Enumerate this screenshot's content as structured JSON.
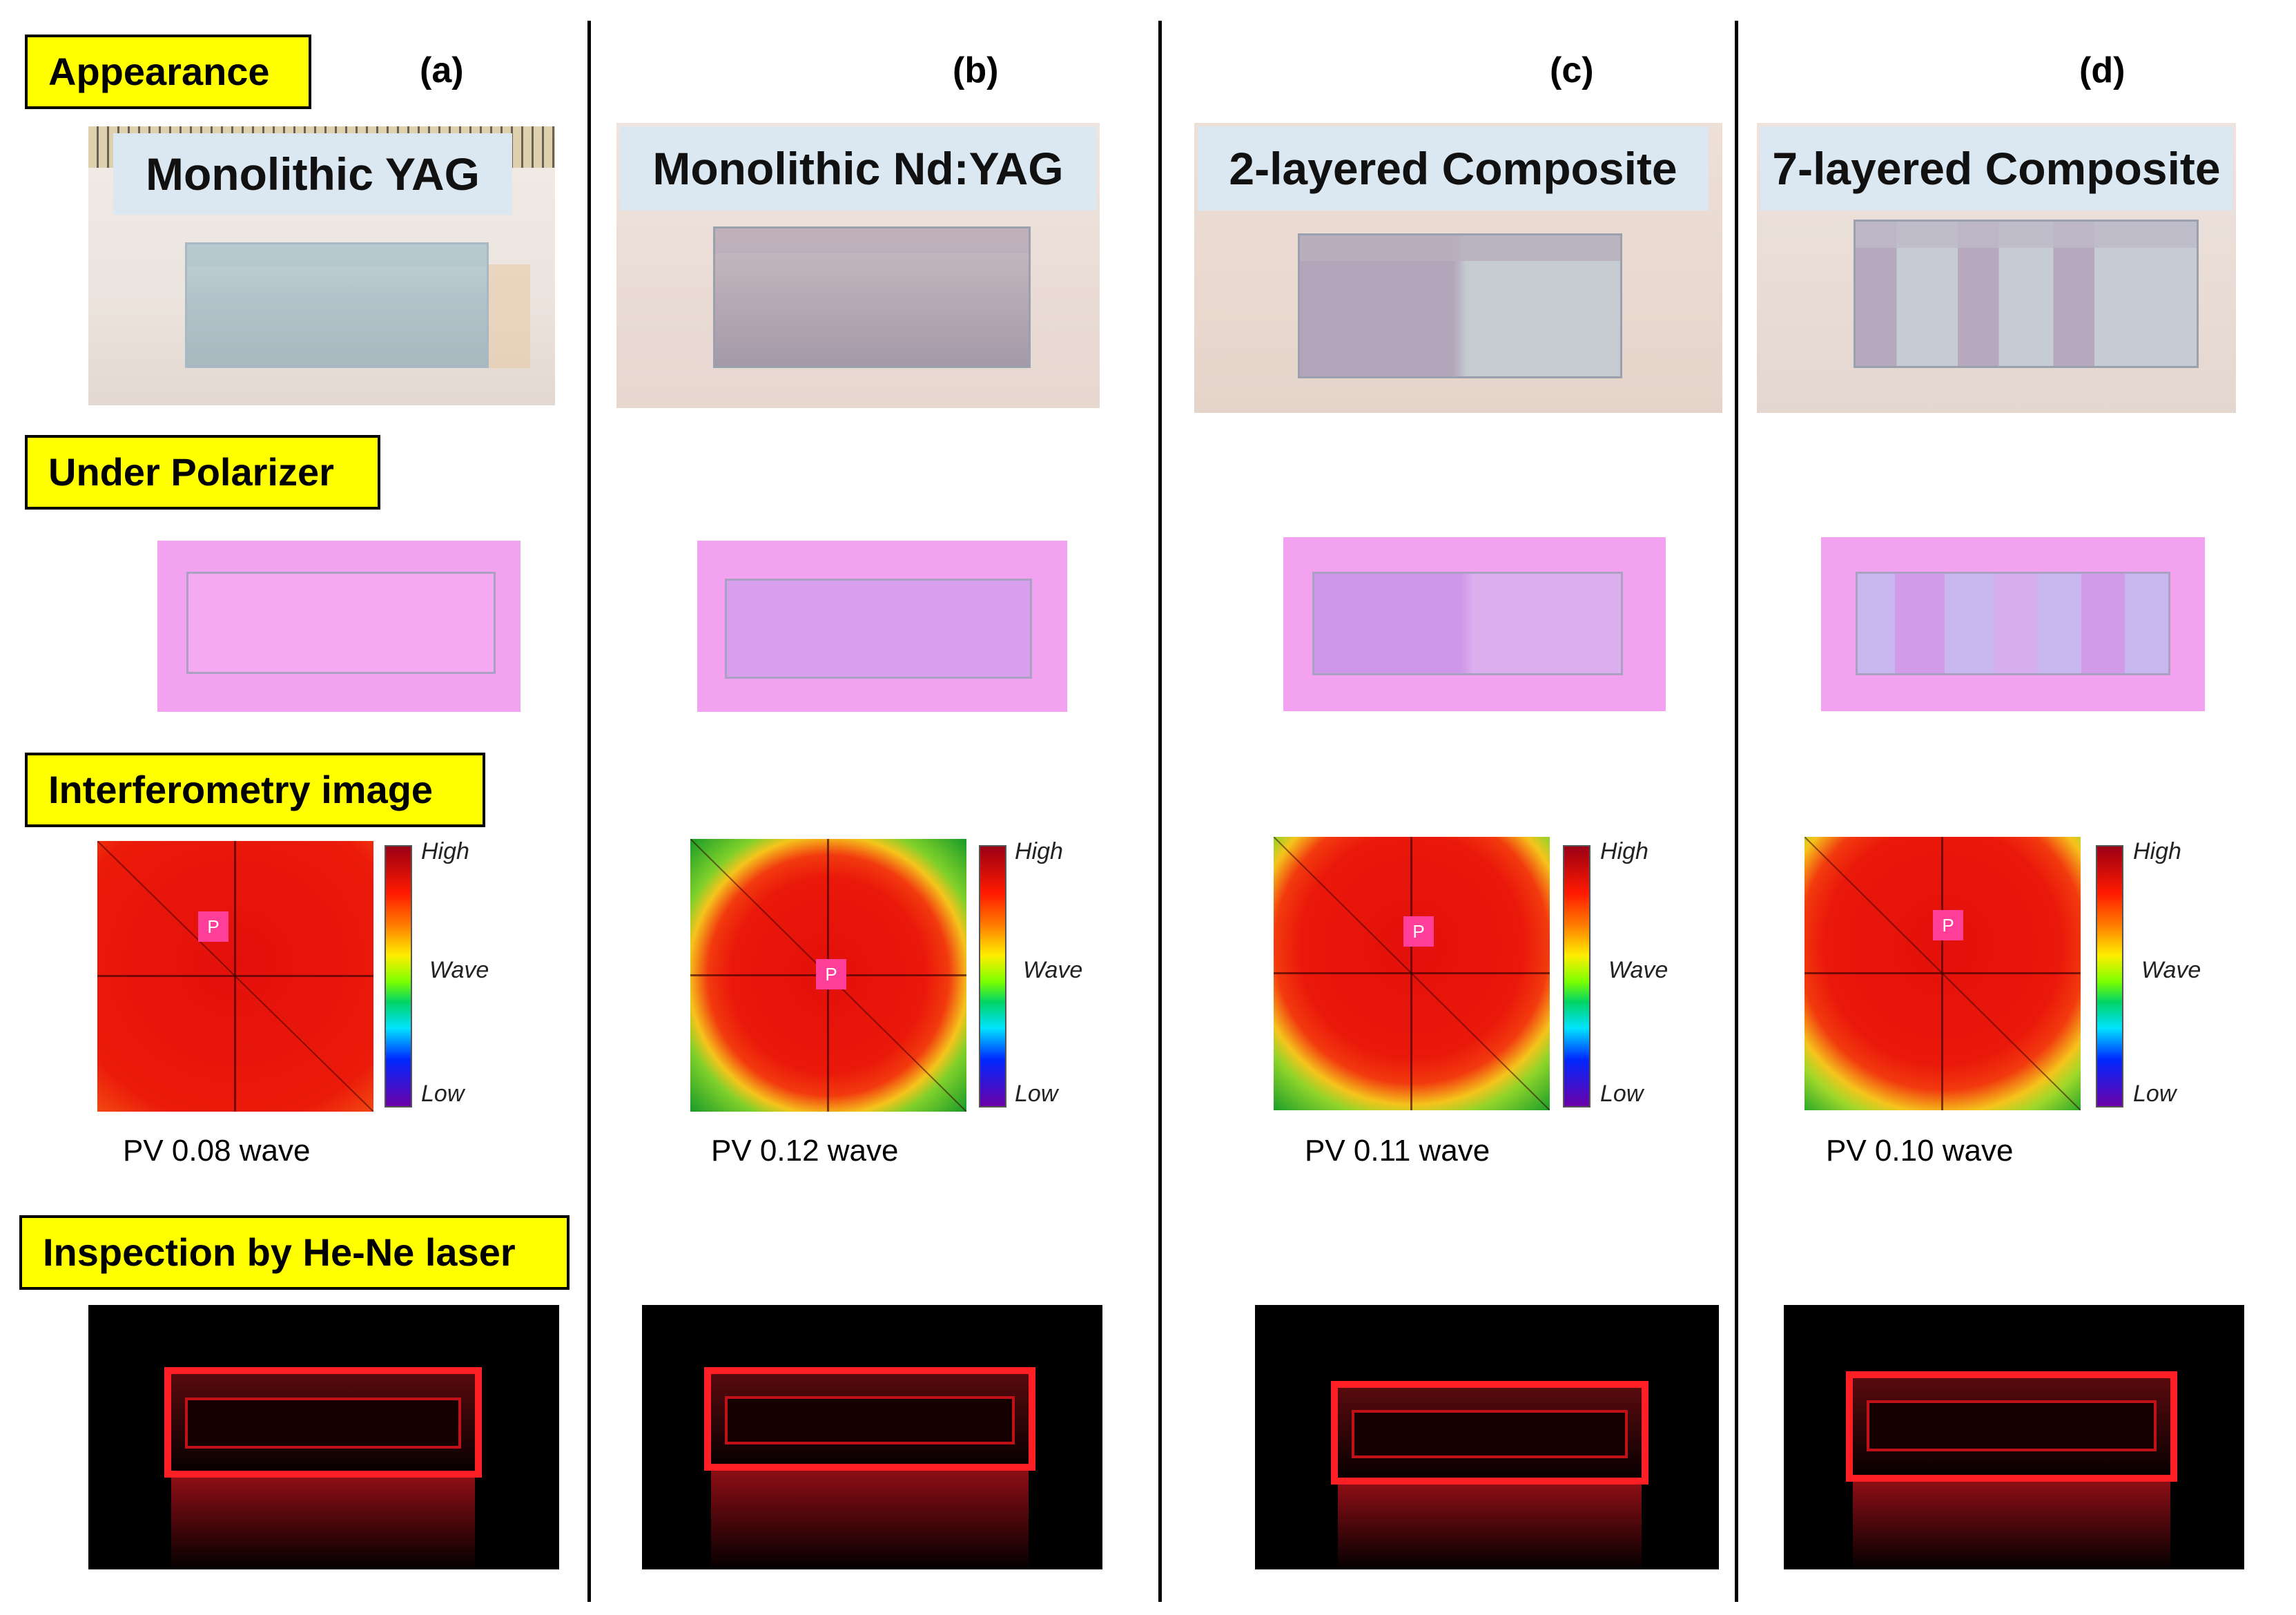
{
  "row_labels": {
    "appearance": "Appearance",
    "polarizer": "Under Polarizer",
    "interferometry": "Interferometry image",
    "inspection": "Inspection by He-Ne laser"
  },
  "columns": [
    {
      "letter": "(a)",
      "title": "Monolithic YAG",
      "pv": "PV 0.08 wave"
    },
    {
      "letter": "(b)",
      "title": "Monolithic Nd:YAG",
      "pv": "PV 0.12 wave"
    },
    {
      "letter": "(c)",
      "title": "2-layered Composite",
      "pv": "PV 0.11 wave"
    },
    {
      "letter": "(d)",
      "title": "7-layered Composite",
      "pv": "PV 0.10 wave"
    }
  ],
  "colorbar": {
    "high": "High",
    "mid": "Wave",
    "low": "Low"
  },
  "interferogram_marker": "P"
}
